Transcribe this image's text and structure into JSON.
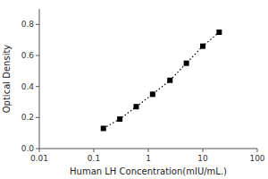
{
  "chart_data": {
    "type": "line",
    "xlabel": "Human LH Concentration(mIU/mL.)",
    "ylabel": "Optical Density",
    "x": [
      0.15,
      0.3,
      0.6,
      1.2,
      2.5,
      5.0,
      10.0,
      20.0
    ],
    "values": [
      0.13,
      0.19,
      0.27,
      0.35,
      0.44,
      0.55,
      0.66,
      0.75
    ],
    "log": "x",
    "xlim": [
      0.01,
      100
    ],
    "ylim": [
      0.0,
      0.9
    ],
    "xticks": [
      0.01,
      0.1,
      1,
      10,
      100
    ],
    "yticks": [
      {
        "value": 0.0,
        "label": "0.0"
      },
      0.2,
      0.4,
      0.6,
      0.8
    ],
    "color": "black",
    "marker": "square",
    "line_style": "dotted"
  }
}
